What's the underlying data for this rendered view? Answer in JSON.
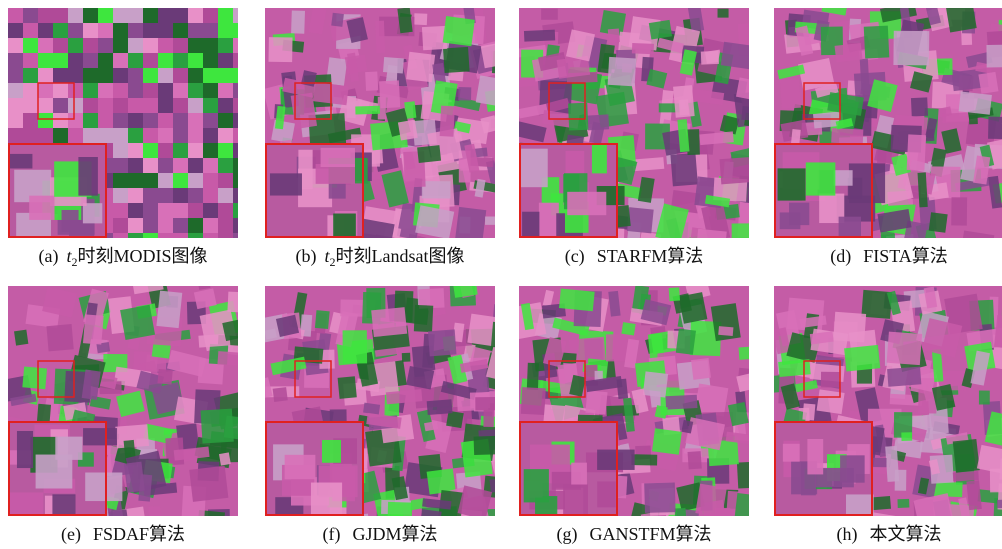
{
  "panels": [
    {
      "label": "(a)",
      "var": "t",
      "sub": "2",
      "text": "时刻MODIS图像"
    },
    {
      "label": "(b)",
      "var": "t",
      "sub": "2",
      "text": "时刻Landsat图像"
    },
    {
      "label": "(c)",
      "text": "STARFM算法"
    },
    {
      "label": "(d)",
      "text": "FISTA算法"
    },
    {
      "label": "(e)",
      "text": "FSDAF算法"
    },
    {
      "label": "(f)",
      "text": "GJDM算法"
    },
    {
      "label": "(g)",
      "text": "GANSTFM算法"
    },
    {
      "label": "(h)",
      "text": "本文算法"
    }
  ]
}
